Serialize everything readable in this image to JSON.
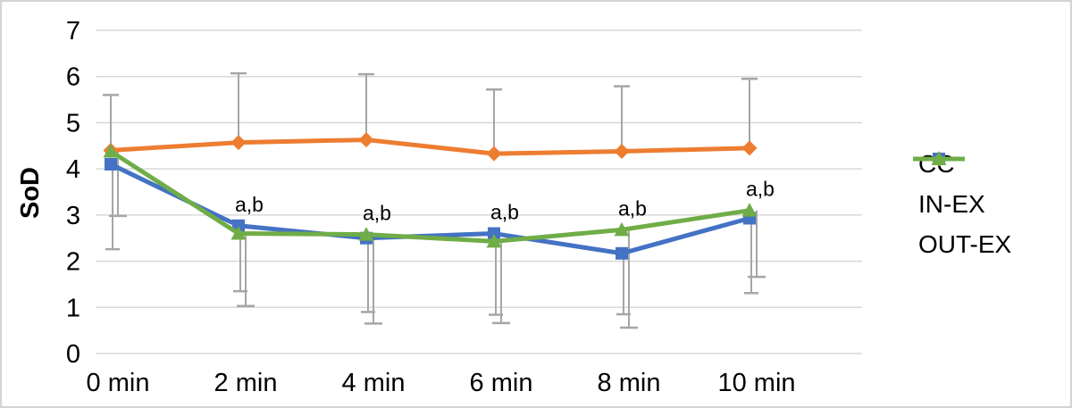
{
  "figure": {
    "background": "#ffffff",
    "border_color": "#d4d4d4"
  },
  "chart_data": {
    "type": "line",
    "title": "",
    "xlabel": "",
    "ylabel": "SoD",
    "categories": [
      "0 min",
      "2 min",
      "4 min",
      "6 min",
      "8 min",
      "10 min"
    ],
    "ylim": [
      0,
      7
    ],
    "ytick_values": [
      0,
      1,
      2,
      3,
      4,
      5,
      6,
      7
    ],
    "grid": "horizontal-only",
    "gridline_color": "#d9d9d9",
    "error_bar_color": "#a6a6a6",
    "text_color": "#000000",
    "legend_position": "right-middle",
    "legend_entries": [
      "CC",
      "IN-EX",
      "OUT-EX"
    ],
    "series": [
      {
        "name": "CC",
        "color": "#ed7d31",
        "marker": "diamond",
        "values": [
          4.4,
          4.57,
          4.63,
          4.33,
          4.38,
          4.45
        ],
        "error_up": [
          5.6,
          6.07,
          6.05,
          5.72,
          5.79,
          5.95
        ],
        "error_down": [
          null,
          null,
          null,
          null,
          null,
          null
        ]
      },
      {
        "name": "IN-EX",
        "color": "#4472c4",
        "marker": "square",
        "values": [
          4.1,
          2.77,
          2.5,
          2.6,
          2.17,
          2.93
        ],
        "error_up": [
          null,
          null,
          null,
          null,
          null,
          null
        ],
        "error_down": [
          2.26,
          1.35,
          0.9,
          0.84,
          0.85,
          1.31
        ]
      },
      {
        "name": "OUT-EX",
        "color": "#70ad47",
        "marker": "triangle",
        "values": [
          4.38,
          2.6,
          2.58,
          2.43,
          2.68,
          3.1
        ],
        "error_up": [
          null,
          null,
          null,
          null,
          null,
          null
        ],
        "error_down": [
          2.98,
          1.03,
          0.65,
          0.66,
          0.56,
          1.66
        ]
      }
    ],
    "annotations": [
      {
        "text": "a,b",
        "category": "2 min",
        "category_index": 1
      },
      {
        "text": "a,b",
        "category": "4 min",
        "category_index": 2
      },
      {
        "text": "a,b",
        "category": "6 min",
        "category_index": 3
      },
      {
        "text": "a,b",
        "category": "8 min",
        "category_index": 4
      },
      {
        "text": "a,b",
        "category": "10 min",
        "category_index": 5
      }
    ]
  }
}
